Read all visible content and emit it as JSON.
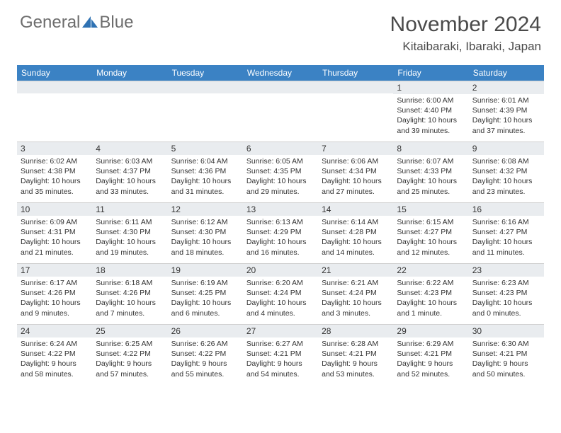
{
  "logo": {
    "text1": "General",
    "text2": "Blue"
  },
  "title": "November 2024",
  "location": "Kitaibaraki, Ibaraki, Japan",
  "colors": {
    "header_bg": "#3b82c4",
    "header_text": "#ffffff",
    "daynum_bg": "#e9ecef",
    "page_bg": "#ffffff",
    "body_text": "#333333",
    "logo_text": "#6d6d6d",
    "logo_icon": "#2f72b3"
  },
  "day_headers": [
    "Sunday",
    "Monday",
    "Tuesday",
    "Wednesday",
    "Thursday",
    "Friday",
    "Saturday"
  ],
  "weeks": [
    [
      null,
      null,
      null,
      null,
      null,
      {
        "n": "1",
        "sunrise": "6:00 AM",
        "sunset": "4:40 PM",
        "daylight": "10 hours and 39 minutes."
      },
      {
        "n": "2",
        "sunrise": "6:01 AM",
        "sunset": "4:39 PM",
        "daylight": "10 hours and 37 minutes."
      }
    ],
    [
      {
        "n": "3",
        "sunrise": "6:02 AM",
        "sunset": "4:38 PM",
        "daylight": "10 hours and 35 minutes."
      },
      {
        "n": "4",
        "sunrise": "6:03 AM",
        "sunset": "4:37 PM",
        "daylight": "10 hours and 33 minutes."
      },
      {
        "n": "5",
        "sunrise": "6:04 AM",
        "sunset": "4:36 PM",
        "daylight": "10 hours and 31 minutes."
      },
      {
        "n": "6",
        "sunrise": "6:05 AM",
        "sunset": "4:35 PM",
        "daylight": "10 hours and 29 minutes."
      },
      {
        "n": "7",
        "sunrise": "6:06 AM",
        "sunset": "4:34 PM",
        "daylight": "10 hours and 27 minutes."
      },
      {
        "n": "8",
        "sunrise": "6:07 AM",
        "sunset": "4:33 PM",
        "daylight": "10 hours and 25 minutes."
      },
      {
        "n": "9",
        "sunrise": "6:08 AM",
        "sunset": "4:32 PM",
        "daylight": "10 hours and 23 minutes."
      }
    ],
    [
      {
        "n": "10",
        "sunrise": "6:09 AM",
        "sunset": "4:31 PM",
        "daylight": "10 hours and 21 minutes."
      },
      {
        "n": "11",
        "sunrise": "6:11 AM",
        "sunset": "4:30 PM",
        "daylight": "10 hours and 19 minutes."
      },
      {
        "n": "12",
        "sunrise": "6:12 AM",
        "sunset": "4:30 PM",
        "daylight": "10 hours and 18 minutes."
      },
      {
        "n": "13",
        "sunrise": "6:13 AM",
        "sunset": "4:29 PM",
        "daylight": "10 hours and 16 minutes."
      },
      {
        "n": "14",
        "sunrise": "6:14 AM",
        "sunset": "4:28 PM",
        "daylight": "10 hours and 14 minutes."
      },
      {
        "n": "15",
        "sunrise": "6:15 AM",
        "sunset": "4:27 PM",
        "daylight": "10 hours and 12 minutes."
      },
      {
        "n": "16",
        "sunrise": "6:16 AM",
        "sunset": "4:27 PM",
        "daylight": "10 hours and 11 minutes."
      }
    ],
    [
      {
        "n": "17",
        "sunrise": "6:17 AM",
        "sunset": "4:26 PM",
        "daylight": "10 hours and 9 minutes."
      },
      {
        "n": "18",
        "sunrise": "6:18 AM",
        "sunset": "4:26 PM",
        "daylight": "10 hours and 7 minutes."
      },
      {
        "n": "19",
        "sunrise": "6:19 AM",
        "sunset": "4:25 PM",
        "daylight": "10 hours and 6 minutes."
      },
      {
        "n": "20",
        "sunrise": "6:20 AM",
        "sunset": "4:24 PM",
        "daylight": "10 hours and 4 minutes."
      },
      {
        "n": "21",
        "sunrise": "6:21 AM",
        "sunset": "4:24 PM",
        "daylight": "10 hours and 3 minutes."
      },
      {
        "n": "22",
        "sunrise": "6:22 AM",
        "sunset": "4:23 PM",
        "daylight": "10 hours and 1 minute."
      },
      {
        "n": "23",
        "sunrise": "6:23 AM",
        "sunset": "4:23 PM",
        "daylight": "10 hours and 0 minutes."
      }
    ],
    [
      {
        "n": "24",
        "sunrise": "6:24 AM",
        "sunset": "4:22 PM",
        "daylight": "9 hours and 58 minutes."
      },
      {
        "n": "25",
        "sunrise": "6:25 AM",
        "sunset": "4:22 PM",
        "daylight": "9 hours and 57 minutes."
      },
      {
        "n": "26",
        "sunrise": "6:26 AM",
        "sunset": "4:22 PM",
        "daylight": "9 hours and 55 minutes."
      },
      {
        "n": "27",
        "sunrise": "6:27 AM",
        "sunset": "4:21 PM",
        "daylight": "9 hours and 54 minutes."
      },
      {
        "n": "28",
        "sunrise": "6:28 AM",
        "sunset": "4:21 PM",
        "daylight": "9 hours and 53 minutes."
      },
      {
        "n": "29",
        "sunrise": "6:29 AM",
        "sunset": "4:21 PM",
        "daylight": "9 hours and 52 minutes."
      },
      {
        "n": "30",
        "sunrise": "6:30 AM",
        "sunset": "4:21 PM",
        "daylight": "9 hours and 50 minutes."
      }
    ]
  ],
  "labels": {
    "sunrise": "Sunrise:",
    "sunset": "Sunset:",
    "daylight": "Daylight:"
  }
}
